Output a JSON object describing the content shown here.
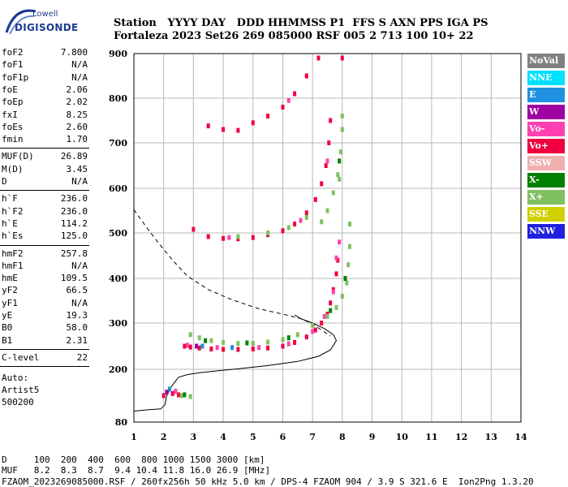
{
  "logo": {
    "brand": "Lowell",
    "product": "DIGISONDE"
  },
  "header": {
    "line1": "Station   YYYY DAY   DDD HHMMSS P1  FFS S AXN PPS IGA PS",
    "line2": "Fortaleza 2023 Set26 269 085000 RSF 005 2 713 100 10+ 22"
  },
  "params_group1": [
    {
      "label": "foF2",
      "value": "7.800"
    },
    {
      "label": "foF1",
      "value": "N/A"
    },
    {
      "label": "foF1p",
      "value": "N/A"
    },
    {
      "label": "foE",
      "value": "2.06"
    },
    {
      "label": "foEp",
      "value": "2.02"
    },
    {
      "label": "fxI",
      "value": "8.25"
    },
    {
      "label": "foEs",
      "value": "2.60"
    },
    {
      "label": "fmin",
      "value": "1.70"
    }
  ],
  "params_group2": [
    {
      "label": "MUF(D)",
      "value": "26.89"
    },
    {
      "label": "M(D)",
      "value": "3.45"
    },
    {
      "label": "D",
      "value": "N/A"
    }
  ],
  "params_group3": [
    {
      "label": "h`F",
      "value": "236.0"
    },
    {
      "label": "h`F2",
      "value": "236.0"
    },
    {
      "label": "h`E",
      "value": "114.2"
    },
    {
      "label": "h`Es",
      "value": "125.0"
    }
  ],
  "params_group4": [
    {
      "label": "hmF2",
      "value": "257.8"
    },
    {
      "label": "hmF1",
      "value": "N/A"
    },
    {
      "label": "hmE",
      "value": "109.5"
    },
    {
      "label": "yF2",
      "value": "66.5"
    },
    {
      "label": "yF1",
      "value": "N/A"
    },
    {
      "label": "yE",
      "value": "19.3"
    },
    {
      "label": "B0",
      "value": "58.0"
    },
    {
      "label": "B1",
      "value": "2.31"
    }
  ],
  "params_group5": [
    {
      "label": "C-level",
      "value": "22"
    }
  ],
  "extra_lines": [
    "Auto:",
    "Artist5",
    "500200"
  ],
  "legend": [
    {
      "label": "NoVal",
      "color": "#808080"
    },
    {
      "label": "NNE",
      "color": "#00e0ff"
    },
    {
      "label": "E",
      "color": "#2090e0"
    },
    {
      "label": "W",
      "color": "#a000a0"
    },
    {
      "label": "Vo-",
      "color": "#ff40b0"
    },
    {
      "label": "Vo+",
      "color": "#f00040"
    },
    {
      "label": "SSW",
      "color": "#f0b0b0"
    },
    {
      "label": "X-",
      "color": "#008000"
    },
    {
      "label": "X+",
      "color": "#80c060"
    },
    {
      "label": "SSE",
      "color": "#d0d000"
    },
    {
      "label": "NNW",
      "color": "#2020e0"
    }
  ],
  "footer": {
    "distance_line": "D     100  200  400  600  800 1000 1500 3000 [km]",
    "muf_line": "MUF   8.2  8.3  8.7  9.4 10.4 11.8 16.0 26.9 [MHz]",
    "file_line": "FZAOM_2023269085000.RSF / 260fx256h 50 kHz 5.0 km / DPS-4 FZAOM 904 / 3.9 S 321.6 E  Ion2Png 1.3.20"
  },
  "chart_data": {
    "type": "scatter",
    "x_ticks": [
      "1",
      "2",
      "3",
      "4",
      "5",
      "6",
      "7",
      "8",
      "9",
      "10",
      "11",
      "12",
      "13",
      "14"
    ],
    "y_ticks": [
      "80",
      "200",
      "300",
      "400",
      "500",
      "600",
      "700",
      "800",
      "900"
    ],
    "xlim": [
      1,
      14
    ],
    "ylim": [
      80,
      900
    ],
    "grid": true,
    "series": [
      {
        "color": "#f00040",
        "points": [
          [
            2.0,
            140
          ],
          [
            2.3,
            145
          ],
          [
            2.5,
            142
          ],
          [
            2.7,
            250
          ],
          [
            2.9,
            248
          ],
          [
            3.2,
            246
          ],
          [
            3.6,
            244
          ],
          [
            4.0,
            243
          ],
          [
            4.5,
            243
          ],
          [
            5.0,
            244
          ],
          [
            5.5,
            246
          ],
          [
            6.0,
            250
          ],
          [
            6.4,
            258
          ],
          [
            6.8,
            270
          ],
          [
            7.1,
            285
          ],
          [
            7.3,
            300
          ],
          [
            7.5,
            320
          ],
          [
            7.6,
            345
          ],
          [
            7.7,
            375
          ],
          [
            7.8,
            410
          ],
          [
            7.85,
            440
          ],
          [
            3.0,
            508
          ],
          [
            3.5,
            492
          ],
          [
            4.0,
            488
          ],
          [
            4.5,
            487
          ],
          [
            5.0,
            490
          ],
          [
            5.5,
            496
          ],
          [
            6.0,
            505
          ],
          [
            6.4,
            520
          ],
          [
            6.8,
            545
          ],
          [
            7.1,
            575
          ],
          [
            7.3,
            610
          ],
          [
            7.45,
            650
          ],
          [
            7.55,
            700
          ],
          [
            7.6,
            750
          ],
          [
            3.5,
            738
          ],
          [
            4.0,
            730
          ],
          [
            4.5,
            728
          ],
          [
            5.0,
            745
          ],
          [
            5.5,
            760
          ],
          [
            6.0,
            780
          ],
          [
            6.4,
            810
          ],
          [
            6.8,
            850
          ],
          [
            7.2,
            890
          ],
          [
            8.0,
            890
          ]
        ]
      },
      {
        "color": "#ff40b0",
        "points": [
          [
            2.4,
            150
          ],
          [
            2.8,
            252
          ],
          [
            3.8,
            247
          ],
          [
            5.2,
            247
          ],
          [
            6.2,
            255
          ],
          [
            7.0,
            282
          ],
          [
            7.4,
            315
          ],
          [
            7.7,
            370
          ],
          [
            7.8,
            445
          ],
          [
            7.9,
            480
          ],
          [
            4.2,
            490
          ],
          [
            6.6,
            528
          ],
          [
            7.5,
            660
          ],
          [
            6.2,
            795
          ]
        ]
      },
      {
        "color": "#80c060",
        "points": [
          [
            2.6,
            140
          ],
          [
            2.9,
            138
          ],
          [
            2.9,
            275
          ],
          [
            3.2,
            268
          ],
          [
            3.6,
            262
          ],
          [
            4.0,
            258
          ],
          [
            4.5,
            256
          ],
          [
            5.0,
            256
          ],
          [
            5.5,
            259
          ],
          [
            6.0,
            264
          ],
          [
            6.5,
            275
          ],
          [
            7.0,
            295
          ],
          [
            7.5,
            315
          ],
          [
            7.8,
            335
          ],
          [
            8.0,
            360
          ],
          [
            8.15,
            390
          ],
          [
            8.2,
            430
          ],
          [
            8.25,
            470
          ],
          [
            8.25,
            520
          ],
          [
            7.3,
            525
          ],
          [
            7.5,
            550
          ],
          [
            7.7,
            590
          ],
          [
            7.85,
            630
          ],
          [
            7.95,
            680
          ],
          [
            8.0,
            730
          ],
          [
            8.0,
            760
          ],
          [
            7.9,
            620
          ],
          [
            6.8,
            535
          ],
          [
            6.2,
            512
          ],
          [
            5.5,
            500
          ],
          [
            4.5,
            492
          ]
        ]
      },
      {
        "color": "#008000",
        "points": [
          [
            2.7,
            142
          ],
          [
            3.4,
            262
          ],
          [
            4.8,
            257
          ],
          [
            6.2,
            268
          ],
          [
            7.6,
            328
          ],
          [
            8.1,
            400
          ],
          [
            7.9,
            660
          ]
        ]
      },
      {
        "color": "#2090e0",
        "points": [
          [
            2.2,
            155
          ],
          [
            3.3,
            250
          ],
          [
            4.3,
            247
          ]
        ]
      },
      {
        "color": "#a000a0",
        "points": [
          [
            2.1,
            148
          ],
          [
            3.1,
            250
          ]
        ]
      }
    ],
    "lines": [
      {
        "style": "solid",
        "points": [
          [
            1.0,
            105
          ],
          [
            1.5,
            108
          ],
          [
            1.9,
            110
          ],
          [
            2.05,
            120
          ],
          [
            2.1,
            140
          ],
          [
            2.25,
            160
          ],
          [
            2.5,
            182
          ],
          [
            2.8,
            188
          ],
          [
            3.2,
            192
          ],
          [
            3.7,
            196
          ],
          [
            4.5,
            201
          ],
          [
            5.5,
            208
          ],
          [
            6.5,
            217
          ],
          [
            7.2,
            228
          ],
          [
            7.6,
            242
          ],
          [
            7.8,
            262
          ],
          [
            7.7,
            275
          ],
          [
            7.4,
            288
          ],
          [
            7.0,
            300
          ],
          [
            6.6,
            310
          ],
          [
            6.4,
            318
          ]
        ]
      },
      {
        "style": "dashed",
        "points": [
          [
            1.0,
            552
          ],
          [
            1.4,
            515
          ],
          [
            1.8,
            480
          ],
          [
            2.3,
            440
          ],
          [
            2.8,
            405
          ],
          [
            3.5,
            375
          ],
          [
            4.3,
            352
          ],
          [
            5.2,
            332
          ],
          [
            6.0,
            320
          ],
          [
            6.6,
            310
          ],
          [
            7.0,
            298
          ],
          [
            7.3,
            285
          ],
          [
            7.6,
            272
          ]
        ]
      }
    ]
  }
}
